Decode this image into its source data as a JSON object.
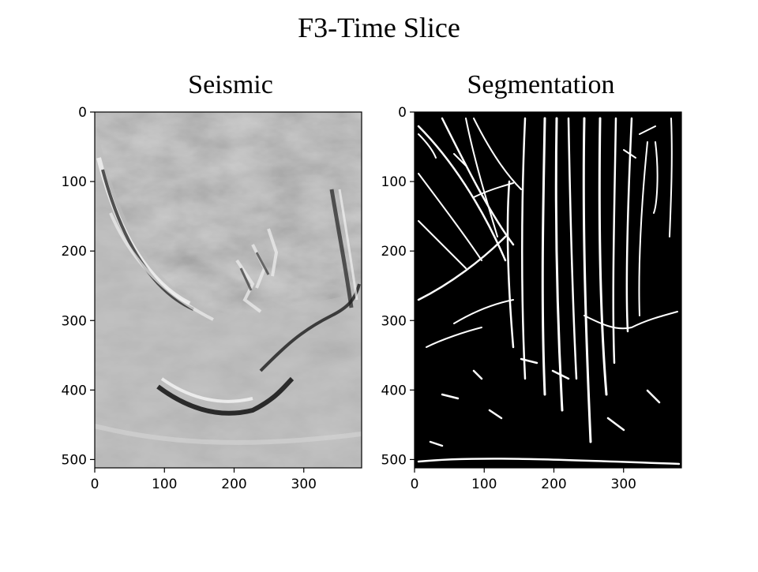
{
  "figure": {
    "title": "F3-Time Slice"
  },
  "chart_data": [
    {
      "type": "heatmap",
      "title": "Seismic",
      "colormap": "gray",
      "xlim": [
        0,
        383
      ],
      "ylim": [
        512,
        0
      ],
      "xticks": [
        0,
        100,
        200,
        300
      ],
      "yticks": [
        0,
        100,
        200,
        300,
        400,
        500
      ],
      "xlabel": "",
      "ylabel": ""
    },
    {
      "type": "heatmap",
      "title": "Segmentation",
      "colormap": "binary (black background, white faults)",
      "xlim": [
        0,
        383
      ],
      "ylim": [
        512,
        0
      ],
      "xticks": [
        0,
        100,
        200,
        300
      ],
      "yticks": [
        0,
        100,
        200,
        300,
        400,
        500
      ],
      "xlabel": "",
      "ylabel": ""
    }
  ]
}
